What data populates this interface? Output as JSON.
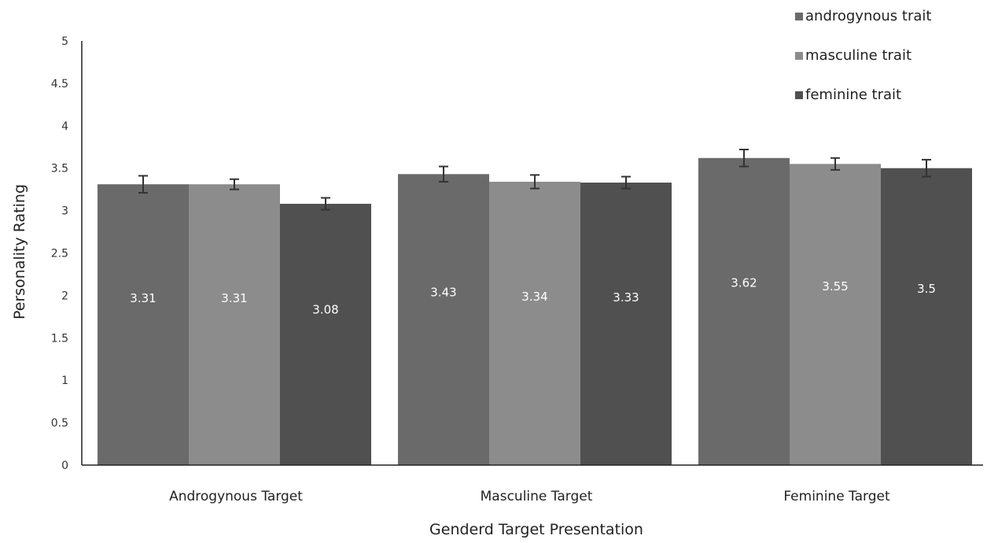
{
  "chart_data": {
    "type": "bar",
    "title": "",
    "xlabel": "Genderd Target Presentation",
    "ylabel": "Personality Rating",
    "ylim": [
      0,
      5
    ],
    "yticks": [
      "0",
      "0.5",
      "1",
      "1.5",
      "2",
      "2.5",
      "3",
      "3.5",
      "4",
      "4.5",
      "5"
    ],
    "categories": [
      "Androgynous Target",
      "Masculine Target",
      "Feminine Target"
    ],
    "series": [
      {
        "name": "androgynous trait",
        "color": "#6a6a6a",
        "values": [
          3.31,
          3.43,
          3.62
        ],
        "labels": [
          "3.31",
          "3.43",
          "3.62"
        ],
        "error": [
          0.1,
          0.09,
          0.1
        ]
      },
      {
        "name": "masculine trait",
        "color": "#8c8c8c",
        "values": [
          3.31,
          3.34,
          3.55
        ],
        "labels": [
          "3.31",
          "3.34",
          "3.55"
        ],
        "error": [
          0.06,
          0.08,
          0.07
        ]
      },
      {
        "name": "feminine trait",
        "color": "#505050",
        "values": [
          3.08,
          3.33,
          3.5
        ],
        "labels": [
          "3.08",
          "3.33",
          "3.5"
        ],
        "error": [
          0.07,
          0.07,
          0.1
        ]
      }
    ],
    "grid": false,
    "legend_position": "top-right",
    "error_bars": true
  }
}
